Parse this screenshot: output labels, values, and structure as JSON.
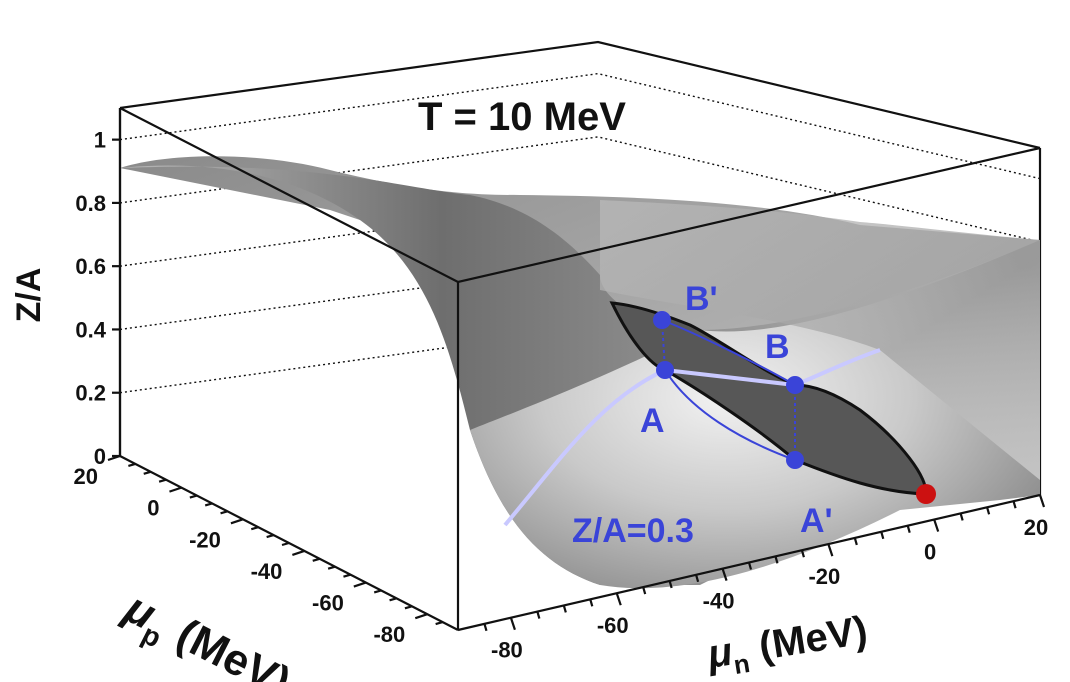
{
  "chart_data": {
    "type": "surface",
    "title": "T = 10 MeV",
    "zlabel": "Z/A",
    "xlabel_symbol": "μ",
    "xlabel_sub": "n",
    "xlabel_unit": "(MeV)",
    "ylabel_symbol": "μ",
    "ylabel_sub": "p",
    "ylabel_unit": "(MeV)",
    "zlim": [
      0,
      1.1
    ],
    "z_ticks": [
      "0",
      "0.2",
      "0.4",
      "0.6",
      "0.8",
      "1"
    ],
    "z_tick_values": [
      0,
      0.2,
      0.4,
      0.6,
      0.8,
      1.0
    ],
    "mu_n_ticks": [
      "-80",
      "-60",
      "-40",
      "-20",
      "0",
      "20"
    ],
    "mu_p_ticks": [
      "20",
      "0",
      "-20",
      "-40",
      "-60",
      "-80"
    ],
    "contour_label": "Z/A=0.3",
    "points": [
      {
        "name": "A",
        "z": 0.27
      },
      {
        "name": "A'",
        "z": 0.0
      },
      {
        "name": "B",
        "z": 0.22
      },
      {
        "name": "B'",
        "z": 0.43
      }
    ],
    "critical_point_color": "#cc1111",
    "surface_color": "#9a9a9a",
    "coexistence_color": "#555555",
    "point_color": "#3a44d8",
    "contour_color": "#c9c9ff",
    "grid": true
  }
}
